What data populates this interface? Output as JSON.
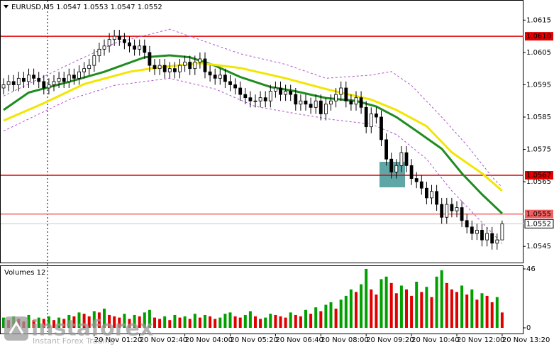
{
  "chart_data": [
    {
      "type": "candlestick",
      "title": "EURUSD,M5 1.0547 1.0553 1.0547 1.0552",
      "ylim": [
        1.054,
        1.0621
      ],
      "yticks": [
        1.0615,
        1.0605,
        1.0595,
        1.0585,
        1.0575,
        1.0565,
        1.0545
      ],
      "up_color": "#ffffff",
      "down_color": "#000000",
      "open": [
        1.0594,
        1.0595,
        1.0596,
        1.0595,
        1.0597,
        1.0596,
        1.0598,
        1.0597,
        1.0596,
        1.0594,
        1.0595,
        1.0596,
        1.0597,
        1.0596,
        1.0598,
        1.0597,
        1.0599,
        1.06,
        1.0601,
        1.0604,
        1.0606,
        1.0607,
        1.0609,
        1.061,
        1.0609,
        1.0608,
        1.0607,
        1.0606,
        1.0607,
        1.0605,
        1.0601,
        1.06,
        1.0601,
        1.0599,
        1.06,
        1.0599,
        1.0601,
        1.0602,
        1.06,
        1.0602,
        1.0603,
        1.0599,
        1.0598,
        1.0597,
        1.0598,
        1.0596,
        1.0595,
        1.0594,
        1.0592,
        1.0591,
        1.059,
        1.059,
        1.0591,
        1.059,
        1.0593,
        1.0594,
        1.0592,
        1.0593,
        1.0592,
        1.0589,
        1.059,
        1.0589,
        1.0588,
        1.059,
        1.0586,
        1.0589,
        1.059,
        1.0592,
        1.0594,
        1.059,
        1.0589,
        1.0591,
        1.0588,
        1.0582,
        1.0586,
        1.0585,
        1.0578,
        1.0572,
        1.0568,
        1.057,
        1.0574,
        1.057,
        1.0566,
        1.0565,
        1.0563,
        1.056,
        1.0562,
        1.0558,
        1.0554,
        1.0558,
        1.0556,
        1.0557,
        1.0553,
        1.0551,
        1.0549,
        1.055,
        1.0547,
        1.0549,
        1.0546,
        1.0547
      ],
      "high": [
        1.0597,
        1.0598,
        1.0598,
        1.0599,
        1.0599,
        1.06,
        1.06,
        1.0599,
        1.0598,
        1.0597,
        1.0598,
        1.0599,
        1.0599,
        1.06,
        1.06,
        1.0601,
        1.0602,
        1.0603,
        1.0606,
        1.0608,
        1.0609,
        1.0611,
        1.0612,
        1.0612,
        1.0611,
        1.061,
        1.0609,
        1.0609,
        1.0609,
        1.0607,
        1.0603,
        1.0603,
        1.0603,
        1.0602,
        1.0602,
        1.0603,
        1.0604,
        1.0604,
        1.0604,
        1.0605,
        1.0605,
        1.0601,
        1.06,
        1.06,
        1.06,
        1.0598,
        1.0597,
        1.0596,
        1.0594,
        1.0593,
        1.0592,
        1.0593,
        1.0593,
        1.0595,
        1.0596,
        1.0596,
        1.0595,
        1.0595,
        1.0594,
        1.0592,
        1.0592,
        1.0591,
        1.0592,
        1.0592,
        1.0591,
        1.0592,
        1.0594,
        1.0596,
        1.0596,
        1.0592,
        1.0593,
        1.0593,
        1.059,
        1.0588,
        1.0588,
        1.0587,
        1.058,
        1.0574,
        1.0572,
        1.0576,
        1.0576,
        1.0572,
        1.0568,
        1.0567,
        1.0565,
        1.0564,
        1.0564,
        1.056,
        1.056,
        1.056,
        1.0559,
        1.0559,
        1.0555,
        1.0553,
        1.0552,
        1.0552,
        1.0551,
        1.0551,
        1.0549,
        1.0553
      ],
      "low": [
        1.0592,
        1.0593,
        1.0593,
        1.0593,
        1.0594,
        1.0594,
        1.0595,
        1.0594,
        1.0592,
        1.0592,
        1.0593,
        1.0594,
        1.0594,
        1.0594,
        1.0595,
        1.0595,
        1.0597,
        1.0598,
        1.0599,
        1.0602,
        1.0604,
        1.0605,
        1.0607,
        1.0607,
        1.0606,
        1.0605,
        1.0604,
        1.0604,
        1.0603,
        1.0599,
        1.0598,
        1.0598,
        1.0597,
        1.0597,
        1.0597,
        1.0597,
        1.0599,
        1.0598,
        1.0598,
        1.06,
        1.0597,
        1.0596,
        1.0595,
        1.0595,
        1.0594,
        1.0593,
        1.0592,
        1.059,
        1.0589,
        1.0588,
        1.0588,
        1.0588,
        1.0588,
        1.0588,
        1.0591,
        1.059,
        1.059,
        1.059,
        1.0587,
        1.0587,
        1.0587,
        1.0586,
        1.0586,
        1.0584,
        1.0584,
        1.0587,
        1.0588,
        1.059,
        1.0588,
        1.0587,
        1.0587,
        1.0586,
        1.058,
        1.058,
        1.0583,
        1.0576,
        1.057,
        1.0566,
        1.0566,
        1.0568,
        1.0568,
        1.0564,
        1.0563,
        1.0561,
        1.0558,
        1.0558,
        1.0556,
        1.0552,
        1.0552,
        1.0554,
        1.0554,
        1.0551,
        1.0549,
        1.0547,
        1.0547,
        1.0545,
        1.0545,
        1.0544,
        1.0544,
        1.0547
      ],
      "close": [
        1.0595,
        1.0596,
        1.0595,
        1.0597,
        1.0596,
        1.0598,
        1.0597,
        1.0596,
        1.0594,
        1.0595,
        1.0596,
        1.0597,
        1.0596,
        1.0598,
        1.0597,
        1.0599,
        1.06,
        1.0601,
        1.0604,
        1.0606,
        1.0607,
        1.0609,
        1.061,
        1.0609,
        1.0608,
        1.0607,
        1.0606,
        1.0607,
        1.0605,
        1.0601,
        1.06,
        1.0601,
        1.0599,
        1.06,
        1.0599,
        1.0601,
        1.0602,
        1.06,
        1.0602,
        1.0603,
        1.0599,
        1.0598,
        1.0597,
        1.0598,
        1.0596,
        1.0595,
        1.0594,
        1.0592,
        1.0591,
        1.059,
        1.059,
        1.0591,
        1.059,
        1.0593,
        1.0594,
        1.0592,
        1.0593,
        1.0592,
        1.0589,
        1.059,
        1.0589,
        1.0588,
        1.059,
        1.0586,
        1.0589,
        1.059,
        1.0592,
        1.0594,
        1.059,
        1.0589,
        1.0591,
        1.0588,
        1.0582,
        1.0586,
        1.0585,
        1.0578,
        1.0572,
        1.0568,
        1.057,
        1.0574,
        1.057,
        1.0566,
        1.0565,
        1.0563,
        1.056,
        1.0562,
        1.0558,
        1.0554,
        1.0558,
        1.0556,
        1.0557,
        1.0553,
        1.0551,
        1.0549,
        1.055,
        1.0547,
        1.0549,
        1.0546,
        1.0547,
        1.0552
      ],
      "lines": [
        {
          "color": "#1e8c1e",
          "width": 3,
          "dashed": false,
          "x": [
            0,
            5,
            13,
            20,
            28,
            33,
            37,
            42,
            47,
            53,
            58,
            64,
            70,
            74,
            78,
            82,
            87,
            91,
            95,
            99
          ],
          "values": [
            1.05872,
            1.05926,
            1.05959,
            1.0599,
            1.06035,
            1.06041,
            1.06035,
            1.06009,
            1.05974,
            1.05943,
            1.0593,
            1.05909,
            1.059,
            1.05883,
            1.0585,
            1.05807,
            1.05752,
            1.05676,
            1.05611,
            1.05552
          ]
        },
        {
          "color": "#f2e600",
          "width": 3,
          "dashed": false,
          "x": [
            0,
            8,
            16,
            25,
            30,
            39,
            47,
            56,
            64,
            73,
            78,
            84,
            89,
            95,
            99
          ],
          "values": [
            1.05839,
            1.05893,
            1.05952,
            1.0599,
            1.06002,
            1.06017,
            1.06002,
            1.0597,
            1.05937,
            1.05904,
            1.05872,
            1.05822,
            1.05741,
            1.05676,
            1.05622
          ]
        },
        {
          "color": "#b050d0",
          "width": 1,
          "dashed": true,
          "x": [
            0,
            13,
            22,
            33,
            39,
            47,
            56,
            64,
            73,
            77,
            81,
            87,
            92,
            97,
            99
          ],
          "values": [
            1.05915,
            1.06013,
            1.06078,
            1.06122,
            1.06089,
            1.06046,
            1.06013,
            1.0597,
            1.0598,
            1.05991,
            1.05948,
            1.0585,
            1.05763,
            1.05665,
            1.05633
          ]
        },
        {
          "color": "#b050d0",
          "width": 1,
          "dashed": true,
          "x": [
            0,
            13,
            22,
            33,
            42,
            50,
            58,
            65,
            73,
            78,
            84,
            89,
            95,
            99
          ],
          "values": [
            1.05807,
            1.05904,
            1.05948,
            1.0597,
            1.05937,
            1.05883,
            1.05861,
            1.05843,
            1.05828,
            1.05796,
            1.0572,
            1.05622,
            1.05524,
            1.05459
          ]
        }
      ],
      "levels": [
        {
          "value": 1.061,
          "label": "1.0610",
          "color": "#e00000",
          "text_color": "#ffffff"
        },
        {
          "value": 1.0567,
          "color": "#e00000",
          "text_color": "#ffffff"
        },
        {
          "value": 1.0555,
          "color": "#f06060",
          "text_color": "#ffffff"
        },
        {
          "value": 1.0552,
          "color": "#c8c8c8",
          "text_color": "#000000"
        }
      ]
    },
    {
      "type": "bar",
      "title": "Volumes 12",
      "ylim": [
        0,
        48.2
      ],
      "yticks": [
        46,
        0
      ],
      "up_color": "#00a000",
      "down_color": "#e00000",
      "values": [
        8,
        6,
        9,
        7,
        5,
        10,
        6,
        8,
        7,
        9,
        6,
        8,
        7,
        10,
        9,
        12,
        11,
        9,
        13,
        12,
        15,
        10,
        9,
        8,
        11,
        7,
        10,
        9,
        12,
        14,
        8,
        7,
        9,
        6,
        10,
        8,
        9,
        7,
        11,
        8,
        10,
        9,
        7,
        8,
        11,
        12,
        9,
        8,
        10,
        13,
        9,
        7,
        8,
        11,
        10,
        9,
        8,
        12,
        10,
        9,
        14,
        11,
        16,
        13,
        18,
        20,
        15,
        22,
        25,
        30,
        28,
        34,
        46,
        30,
        26,
        38,
        40,
        35,
        27,
        33,
        30,
        25,
        36,
        28,
        32,
        24,
        40,
        45,
        35,
        30,
        28,
        33,
        26,
        30,
        22,
        27,
        25,
        20,
        24,
        12
      ],
      "x_labels": [
        {
          "value": 18,
          "label": "20 Nov 01:20"
        },
        {
          "value": 27,
          "label": "20 Nov 02:40"
        },
        {
          "value": 36,
          "label": "20 Nov 04:00"
        },
        {
          "value": 45,
          "label": "20 Nov 05:20"
        },
        {
          "value": 54,
          "label": "20 Nov 06:40"
        },
        {
          "value": 63,
          "label": "20 Nov 08:00"
        },
        {
          "value": 72,
          "label": "20 Nov 09:20"
        },
        {
          "value": 81,
          "label": "20 Nov 10:40"
        },
        {
          "value": 90,
          "label": "20 Nov 12:00"
        },
        {
          "value": 99,
          "label": "20 Nov 13:20"
        }
      ]
    }
  ],
  "watermark": {
    "brand": "instaforex",
    "tagline": "Instant Forex Trading"
  }
}
